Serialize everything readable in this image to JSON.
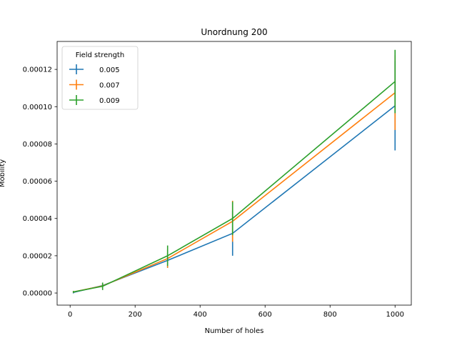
{
  "chart_data": {
    "type": "line",
    "title": "Unordnung 200",
    "xlabel": "Number of holes",
    "ylabel": "Mobility",
    "xlim": [
      -40,
      1050
    ],
    "ylim": [
      -6.5e-06,
      0.000135
    ],
    "x_ticks": [
      0,
      200,
      400,
      600,
      800,
      1000
    ],
    "y_ticks": [
      0,
      2e-05,
      4e-05,
      6e-05,
      8e-05,
      0.0001,
      0.00012
    ],
    "x_tick_labels": [
      "0",
      "200",
      "400",
      "600",
      "800",
      "1000"
    ],
    "y_tick_labels": [
      "0.00000",
      "0.00002",
      "0.00004",
      "0.00006",
      "0.00008",
      "0.00010",
      "0.00012"
    ],
    "grid": false,
    "legend": {
      "title": "Field strength",
      "placement": "top-left"
    },
    "x": [
      10,
      100,
      300,
      500,
      1000
    ],
    "series": [
      {
        "name": "0.005",
        "color": "#1f77b4",
        "values": [
          3e-07,
          4e-06,
          1.75e-05,
          3.2e-05,
          0.0001005
        ],
        "errors": [
          5e-07,
          1e-06,
          4e-06,
          1.2e-05,
          2.4e-05
        ]
      },
      {
        "name": "0.007",
        "color": "#ff7f0e",
        "values": [
          6e-07,
          3.8e-06,
          1.85e-05,
          3.85e-05,
          0.0001075
        ],
        "errors": [
          5e-07,
          1.5e-06,
          5e-06,
          1.1e-05,
          2e-05
        ]
      },
      {
        "name": "0.009",
        "color": "#2ca02c",
        "values": [
          6e-07,
          3.6e-06,
          2e-05,
          4e-05,
          0.0001135
        ],
        "errors": [
          5e-07,
          2e-06,
          5.5e-06,
          9e-06,
          1.7e-05
        ]
      }
    ]
  }
}
